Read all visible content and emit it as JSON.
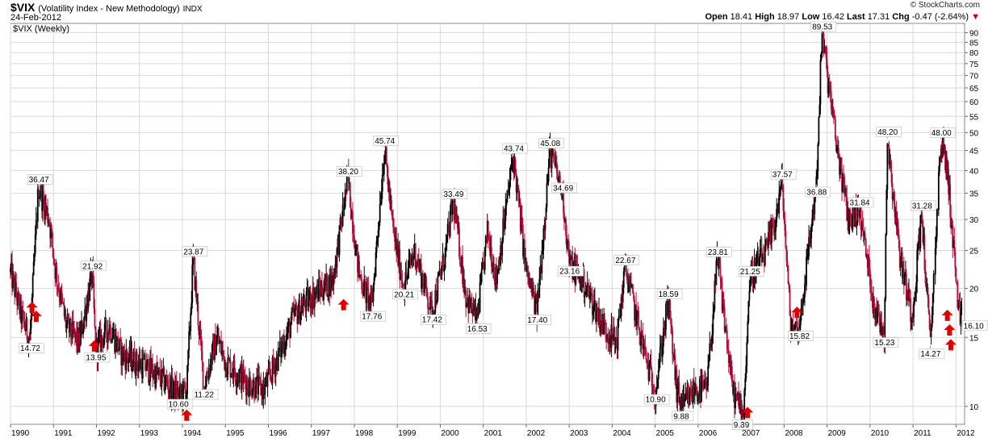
{
  "header": {
    "symbol": "$VIX",
    "description": "(Volatility Index - New Methodology)",
    "exchange": "INDX",
    "date": "24-Feb-2012",
    "brand": "© StockCharts.com",
    "quote": {
      "open_label": "Open",
      "open": "18.41",
      "high_label": "High",
      "high": "18.97",
      "low_label": "Low",
      "low": "16.42",
      "last_label": "Last",
      "last": "17.31",
      "chg_label": "Chg",
      "chg": "-0.47 (-2.64%)"
    }
  },
  "colors": {
    "up": "#000000",
    "down": "#b0103a",
    "arrow": "#e00000",
    "grid": "#d9d9d9"
  },
  "chart_data": {
    "type": "candlestick",
    "series_label": "$VIX (Weekly)",
    "y_scale": "log",
    "ylim": [
      9,
      95
    ],
    "xlim": [
      1990.0,
      2012.2
    ],
    "y_ticks": [
      10,
      15,
      20,
      25,
      30,
      35,
      40,
      45,
      50,
      55,
      60,
      65,
      70,
      75,
      80,
      85,
      90
    ],
    "x_ticks": [
      "1990",
      "1991",
      "1992",
      "1993",
      "1994",
      "1995",
      "1996",
      "1997",
      "1998",
      "1999",
      "2000",
      "2001",
      "2002",
      "2003",
      "2004",
      "2005",
      "2006",
      "2007",
      "2008",
      "2009",
      "2010",
      "2011",
      "2012"
    ],
    "path": [
      [
        1990.0,
        22
      ],
      [
        1990.25,
        17
      ],
      [
        1990.45,
        14.72
      ],
      [
        1990.65,
        36.47
      ],
      [
        1990.9,
        30
      ],
      [
        1991.05,
        22
      ],
      [
        1991.3,
        16
      ],
      [
        1991.6,
        14.5
      ],
      [
        1991.9,
        21.92
      ],
      [
        1991.98,
        13.95
      ],
      [
        1992.3,
        16
      ],
      [
        1992.6,
        13.5
      ],
      [
        1992.9,
        13
      ],
      [
        1993.2,
        12.5
      ],
      [
        1993.6,
        11.5
      ],
      [
        1993.9,
        10.6
      ],
      [
        1994.1,
        11
      ],
      [
        1994.25,
        23.87
      ],
      [
        1994.5,
        11.22
      ],
      [
        1994.8,
        15
      ],
      [
        1995.0,
        13
      ],
      [
        1995.5,
        11.5
      ],
      [
        1995.9,
        11
      ],
      [
        1996.3,
        14
      ],
      [
        1996.6,
        17
      ],
      [
        1997.0,
        19
      ],
      [
        1997.5,
        21
      ],
      [
        1997.85,
        38.2
      ],
      [
        1998.1,
        22
      ],
      [
        1998.4,
        17.76
      ],
      [
        1998.7,
        45.74
      ],
      [
        1998.9,
        28
      ],
      [
        1999.15,
        20.21
      ],
      [
        1999.4,
        25
      ],
      [
        1999.8,
        17.42
      ],
      [
        2000.1,
        24
      ],
      [
        2000.3,
        33.49
      ],
      [
        2000.6,
        19
      ],
      [
        2000.85,
        16.53
      ],
      [
        2001.1,
        28
      ],
      [
        2001.3,
        21
      ],
      [
        2001.7,
        43.74
      ],
      [
        2002.0,
        22
      ],
      [
        2002.25,
        17.4
      ],
      [
        2002.55,
        45.08
      ],
      [
        2002.85,
        34.69
      ],
      [
        2003.0,
        23.16
      ],
      [
        2003.3,
        21
      ],
      [
        2003.8,
        16
      ],
      [
        2004.1,
        14.5
      ],
      [
        2004.3,
        22.67
      ],
      [
        2004.8,
        13
      ],
      [
        2005.0,
        10.9
      ],
      [
        2005.3,
        18.59
      ],
      [
        2005.5,
        11
      ],
      [
        2005.65,
        9.88
      ],
      [
        2005.9,
        11
      ],
      [
        2006.2,
        11
      ],
      [
        2006.45,
        23.81
      ],
      [
        2006.8,
        11
      ],
      [
        2007.05,
        9.39
      ],
      [
        2007.2,
        21.25
      ],
      [
        2007.6,
        25
      ],
      [
        2007.8,
        30
      ],
      [
        2007.95,
        37.57
      ],
      [
        2008.15,
        16
      ],
      [
        2008.35,
        15.82
      ],
      [
        2008.75,
        36.88
      ],
      [
        2008.88,
        89.53
      ],
      [
        2009.2,
        48
      ],
      [
        2009.5,
        30
      ],
      [
        2009.75,
        31.84
      ],
      [
        2010.1,
        18
      ],
      [
        2010.33,
        15.23
      ],
      [
        2010.4,
        48.2
      ],
      [
        2010.7,
        24
      ],
      [
        2010.98,
        17
      ],
      [
        2011.2,
        31.28
      ],
      [
        2011.4,
        14.27
      ],
      [
        2011.65,
        48.0
      ],
      [
        2011.8,
        40
      ],
      [
        2012.0,
        21
      ],
      [
        2012.1,
        16.1
      ],
      [
        2012.15,
        17.31
      ]
    ],
    "annotations": [
      {
        "x": 1990.45,
        "y": 14.72,
        "label": "14.72",
        "pos": "below"
      },
      {
        "x": 1990.65,
        "y": 36.47,
        "label": "36.47",
        "pos": "above"
      },
      {
        "x": 1991.9,
        "y": 21.92,
        "label": "21.92",
        "pos": "above"
      },
      {
        "x": 1991.98,
        "y": 13.95,
        "label": "13.95",
        "pos": "below"
      },
      {
        "x": 1993.9,
        "y": 10.6,
        "label": "10.60",
        "pos": "below"
      },
      {
        "x": 1994.25,
        "y": 23.87,
        "label": "23.87",
        "pos": "above"
      },
      {
        "x": 1994.5,
        "y": 11.22,
        "label": "11.22",
        "pos": "below"
      },
      {
        "x": 1997.85,
        "y": 38.2,
        "label": "38.20",
        "pos": "above"
      },
      {
        "x": 1998.4,
        "y": 17.76,
        "label": "17.76",
        "pos": "below"
      },
      {
        "x": 1998.7,
        "y": 45.74,
        "label": "45.74",
        "pos": "above"
      },
      {
        "x": 1999.15,
        "y": 20.21,
        "label": "20.21",
        "pos": "below"
      },
      {
        "x": 1999.8,
        "y": 17.42,
        "label": "17.42",
        "pos": "below"
      },
      {
        "x": 2000.3,
        "y": 33.49,
        "label": "33.49",
        "pos": "above"
      },
      {
        "x": 2000.85,
        "y": 16.53,
        "label": "16.53",
        "pos": "below"
      },
      {
        "x": 2001.7,
        "y": 43.74,
        "label": "43.74",
        "pos": "above"
      },
      {
        "x": 2002.25,
        "y": 17.4,
        "label": "17.40",
        "pos": "below"
      },
      {
        "x": 2002.55,
        "y": 45.08,
        "label": "45.08",
        "pos": "above"
      },
      {
        "x": 2002.85,
        "y": 34.69,
        "label": "34.69",
        "pos": "above"
      },
      {
        "x": 2003.0,
        "y": 23.16,
        "label": "23.16",
        "pos": "below"
      },
      {
        "x": 2004.3,
        "y": 22.67,
        "label": "22.67",
        "pos": "above"
      },
      {
        "x": 2005.0,
        "y": 10.9,
        "label": "10.90",
        "pos": "below"
      },
      {
        "x": 2005.3,
        "y": 18.59,
        "label": "18.59",
        "pos": "above"
      },
      {
        "x": 2005.65,
        "y": 9.88,
        "label": "9.88",
        "pos": "below"
      },
      {
        "x": 2006.45,
        "y": 23.81,
        "label": "23.81",
        "pos": "above"
      },
      {
        "x": 2007.05,
        "y": 9.39,
        "label": "9.39",
        "pos": "below"
      },
      {
        "x": 2007.2,
        "y": 21.25,
        "label": "21.25",
        "pos": "above"
      },
      {
        "x": 2007.95,
        "y": 37.57,
        "label": "37.57",
        "pos": "above"
      },
      {
        "x": 2008.35,
        "y": 15.82,
        "label": "15.82",
        "pos": "below"
      },
      {
        "x": 2008.75,
        "y": 36.88,
        "label": "36.88",
        "pos": "below"
      },
      {
        "x": 2008.88,
        "y": 89.53,
        "label": "89.53",
        "pos": "above"
      },
      {
        "x": 2009.75,
        "y": 31.84,
        "label": "31.84",
        "pos": "above"
      },
      {
        "x": 2010.33,
        "y": 15.23,
        "label": "15.23",
        "pos": "below"
      },
      {
        "x": 2010.4,
        "y": 48.2,
        "label": "48.20",
        "pos": "above"
      },
      {
        "x": 2011.2,
        "y": 31.28,
        "label": "31.28",
        "pos": "above"
      },
      {
        "x": 2011.4,
        "y": 14.27,
        "label": "14.27",
        "pos": "below"
      },
      {
        "x": 2011.65,
        "y": 48.0,
        "label": "48.00",
        "pos": "above"
      },
      {
        "x": 2012.1,
        "y": 16.1,
        "label": "16.10",
        "pos": "right"
      }
    ],
    "markers": [
      {
        "x": 1990.5,
        "y": 17.8
      },
      {
        "x": 1990.6,
        "y": 16.9
      },
      {
        "x": 1991.95,
        "y": 14.2
      },
      {
        "x": 1994.1,
        "y": 9.45
      },
      {
        "x": 1997.75,
        "y": 18.1
      },
      {
        "x": 2007.15,
        "y": 9.6
      },
      {
        "x": 2008.3,
        "y": 17.3
      },
      {
        "x": 2011.8,
        "y": 17.0
      },
      {
        "x": 2011.85,
        "y": 15.6
      },
      {
        "x": 2011.88,
        "y": 14.3
      }
    ]
  }
}
